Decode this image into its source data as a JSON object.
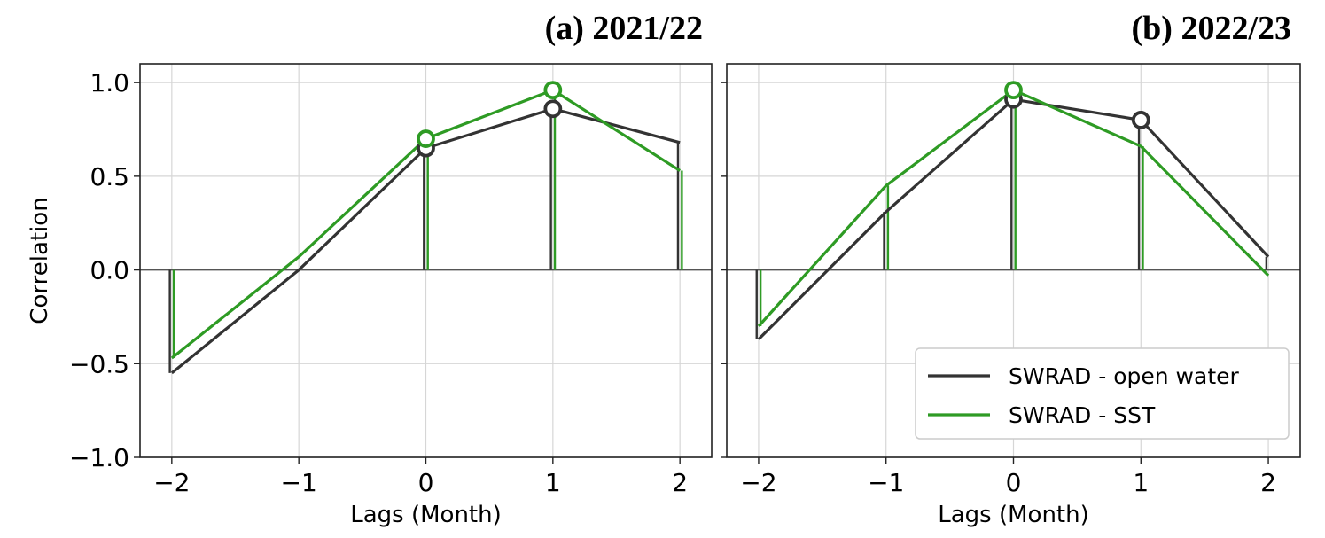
{
  "chart_data": [
    {
      "type": "line",
      "title": "(a) 2021/22",
      "xlabel": "Lags (Month)",
      "ylabel": "Correlation",
      "xlim": [
        -2.25,
        2.25
      ],
      "ylim": [
        -1.0,
        1.1
      ],
      "xticks": [
        -2,
        -1,
        0,
        1,
        2
      ],
      "xtick_labels": [
        "−2",
        "−1",
        "0",
        "1",
        "2"
      ],
      "yticks": [
        -1.0,
        -0.5,
        0.0,
        0.5,
        1.0
      ],
      "ytick_labels": [
        "−1.0",
        "−0.5",
        "0.0",
        "0.5",
        "1.0"
      ],
      "grid": true,
      "x": [
        -2,
        -1,
        0,
        1,
        2
      ],
      "series": [
        {
          "name": "SWRAD - open water",
          "color": "#333333",
          "values": [
            -0.55,
            0.0,
            0.65,
            0.86,
            0.68
          ],
          "stems": [
            -2,
            0,
            1,
            2
          ],
          "markers": [
            0,
            1
          ]
        },
        {
          "name": "SWRAD - SST",
          "color": "#2e9b24",
          "values": [
            -0.47,
            0.07,
            0.7,
            0.96,
            0.53
          ],
          "stems": [
            -2,
            0,
            1,
            2
          ],
          "markers": [
            0,
            1
          ]
        }
      ]
    },
    {
      "type": "line",
      "title": "(b) 2022/23",
      "xlabel": "Lags (Month)",
      "ylabel": "",
      "xlim": [
        -2.25,
        2.25
      ],
      "ylim": [
        -1.0,
        1.1
      ],
      "xticks": [
        -2,
        -1,
        0,
        1,
        2
      ],
      "xtick_labels": [
        "−2",
        "−1",
        "0",
        "1",
        "2"
      ],
      "yticks": [
        -1.0,
        -0.5,
        0.0,
        0.5,
        1.0
      ],
      "grid": true,
      "legend": "lower-right",
      "x": [
        -2,
        -1,
        0,
        1,
        2
      ],
      "series": [
        {
          "name": "SWRAD - open water",
          "color": "#333333",
          "values": [
            -0.37,
            0.31,
            0.91,
            0.8,
            0.07
          ],
          "stems": [
            -2,
            -1,
            0,
            1,
            2
          ],
          "markers": [
            0,
            1
          ]
        },
        {
          "name": "SWRAD - SST",
          "color": "#2e9b24",
          "values": [
            -0.3,
            0.45,
            0.96,
            0.66,
            -0.03
          ],
          "stems": [
            -2,
            -1,
            0,
            1
          ],
          "markers": [
            0
          ]
        }
      ]
    }
  ]
}
